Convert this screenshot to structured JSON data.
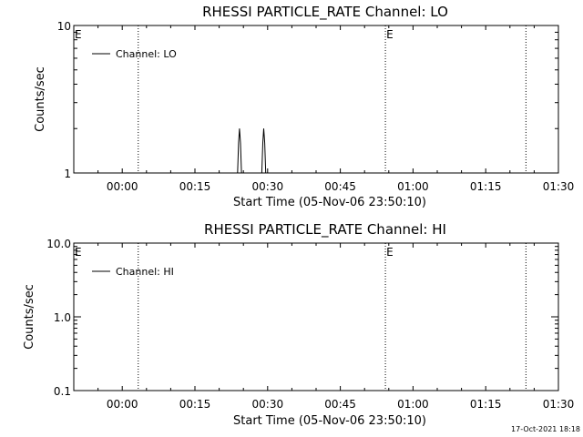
{
  "chart_data": [
    {
      "type": "line",
      "title": "RHESSI PARTICLE_RATE Channel: LO",
      "xlabel": "Start Time (05-Nov-06 23:50:10)",
      "ylabel": "Counts/sec",
      "y_scale": "log",
      "ylim": [
        1,
        10
      ],
      "y_ticks": [
        "1",
        "10"
      ],
      "x_tick_labels": [
        "00:00",
        "00:15",
        "00:30",
        "00:45",
        "01:00",
        "01:15",
        "01:30"
      ],
      "x_ticks_min": [
        10,
        25,
        40,
        55,
        70,
        85,
        100
      ],
      "xlim_min": [
        0,
        100
      ],
      "grid": false,
      "legend": {
        "placement": "top-left",
        "entries": [
          "Channel: LO"
        ]
      },
      "series": [
        {
          "name": "Channel: LO",
          "x_min": [
            0,
            33.8,
            34.0,
            34.2,
            34.4,
            34.6,
            38.8,
            39.0,
            39.2,
            39.4,
            39.6,
            100
          ],
          "y": [
            1,
            1,
            1.6,
            2,
            1.6,
            1,
            1,
            1.6,
            2,
            1.6,
            1,
            1
          ]
        }
      ],
      "vlines_min": [
        13.3,
        64.3,
        93.3
      ],
      "markers": [
        {
          "label": "E",
          "x_min": 0
        },
        {
          "label": "E",
          "x_min": 64.3
        }
      ]
    },
    {
      "type": "line",
      "title": "RHESSI PARTICLE_RATE Channel: HI",
      "xlabel": "Start Time (05-Nov-06 23:50:10)",
      "ylabel": "Counts/sec",
      "y_scale": "log",
      "ylim": [
        0.1,
        10
      ],
      "y_ticks": [
        "0.1",
        "1.0",
        "10.0"
      ],
      "x_tick_labels": [
        "00:00",
        "00:15",
        "00:30",
        "00:45",
        "01:00",
        "01:15",
        "01:30"
      ],
      "x_ticks_min": [
        10,
        25,
        40,
        55,
        70,
        85,
        100
      ],
      "xlim_min": [
        0,
        100
      ],
      "grid": false,
      "legend": {
        "placement": "top-left",
        "entries": [
          "Channel: HI"
        ]
      },
      "series": [
        {
          "name": "Channel: HI",
          "x_min": [],
          "y": []
        }
      ],
      "vlines_min": [
        13.3,
        64.3,
        93.3
      ],
      "markers": [
        {
          "label": "E",
          "x_min": 0
        },
        {
          "label": "E",
          "x_min": 64.3
        }
      ]
    }
  ],
  "footer": {
    "timestamp": "17-Oct-2021 18:18"
  }
}
